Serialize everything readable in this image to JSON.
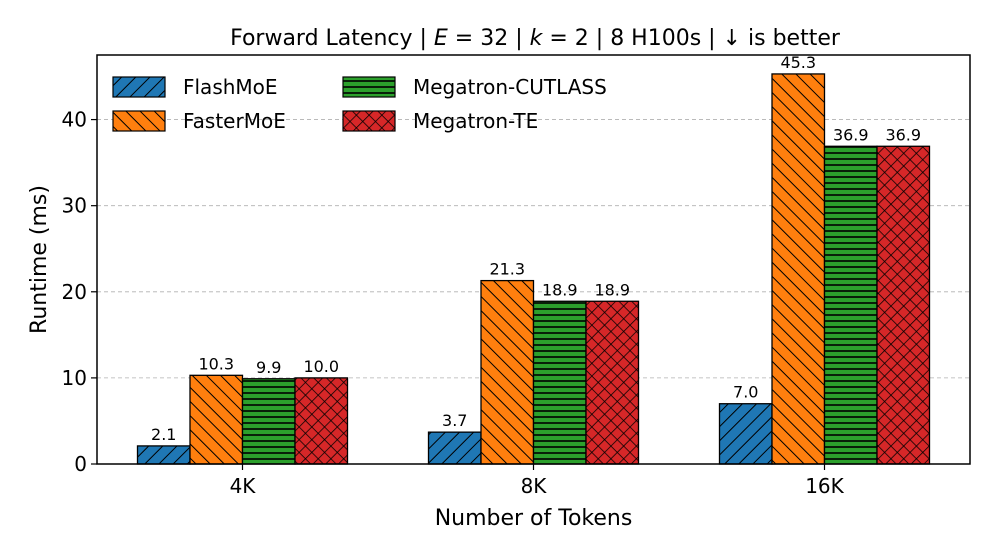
{
  "chart_data": {
    "type": "bar",
    "title_parts": {
      "prefix": "Forward Latency | ",
      "e_var": "E",
      "e_eq": " = 32 | ",
      "k_var": "k",
      "k_eq": " = 2 | 8 H100s | ",
      "arrow": "↓",
      "suffix": " is better"
    },
    "xlabel": "Number of Tokens",
    "ylabel": "Runtime (ms)",
    "ylim": [
      0,
      47.5
    ],
    "yticks": [
      0,
      10,
      20,
      30,
      40
    ],
    "grid": "y-dashed",
    "legend_position": "upper-left",
    "categories": [
      "4K",
      "8K",
      "16K"
    ],
    "series": [
      {
        "name": "FlashMoE",
        "values": [
          2.1,
          3.7,
          7.0
        ],
        "labels": [
          "2.1",
          "3.7",
          "7.0"
        ],
        "color": "#1f77b4",
        "hatch": "diagonal-forward"
      },
      {
        "name": "FasterMoE",
        "values": [
          10.3,
          21.3,
          45.3
        ],
        "labels": [
          "10.3",
          "21.3",
          "45.3"
        ],
        "color": "#ff7f0e",
        "hatch": "diagonal-back"
      },
      {
        "name": "Megatron-CUTLASS",
        "values": [
          9.9,
          18.9,
          36.9
        ],
        "labels": [
          "9.9",
          "18.9",
          "36.9"
        ],
        "color": "#2ca02c",
        "hatch": "horizontal"
      },
      {
        "name": "Megatron-TE",
        "values": [
          10.0,
          18.9,
          36.9
        ],
        "labels": [
          "10.0",
          "18.9",
          "36.9"
        ],
        "color": "#d62728",
        "hatch": "crosshatch"
      }
    ]
  }
}
